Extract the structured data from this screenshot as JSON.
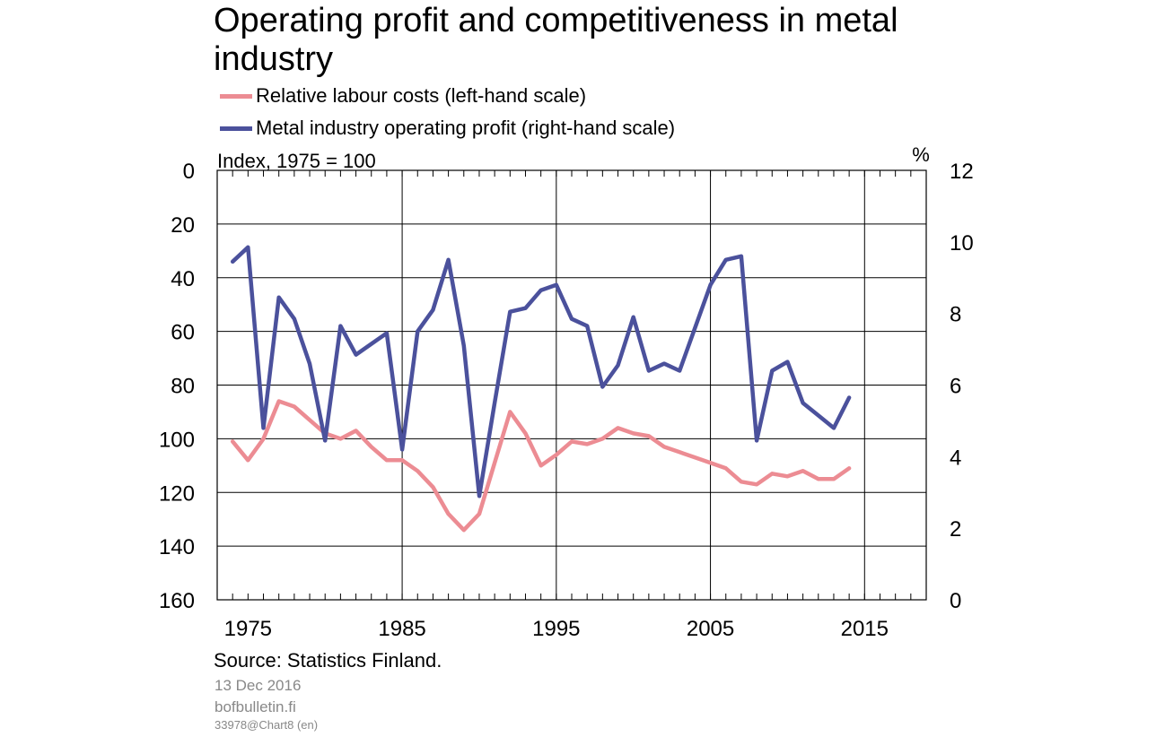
{
  "header": {
    "title": "Operating profit and competitiveness in metal industry"
  },
  "footer": {
    "source": "Source: Statistics Finland.",
    "date": "13 Dec 2016",
    "site": "bofbulletin.fi",
    "code": "33978@Chart8 (en)"
  },
  "chart_data": {
    "type": "line",
    "title": "Operating profit and competitiveness in metal industry",
    "left_axis": {
      "label": "Index, 1975 = 100",
      "range": [
        0,
        160
      ],
      "inverted": true,
      "ticks": [
        "0",
        "20",
        "40",
        "60",
        "80",
        "100",
        "120",
        "140",
        "160"
      ]
    },
    "right_axis": {
      "label": "%",
      "range": [
        0,
        12
      ],
      "ticks": [
        "0",
        "2",
        "4",
        "6",
        "8",
        "10",
        "12"
      ]
    },
    "x_axis": {
      "range": [
        1973,
        2019
      ],
      "ticks": [
        "1975",
        "1985",
        "1995",
        "2005",
        "2015"
      ]
    },
    "grid": true,
    "legend_position": "top",
    "series": [
      {
        "name": "Relative labour costs (left-hand scale)",
        "axis": "left",
        "color": "#ec8c93",
        "x": [
          1974,
          1975,
          1976,
          1977,
          1978,
          1979,
          1980,
          1981,
          1982,
          1983,
          1984,
          1985,
          1986,
          1987,
          1988,
          1989,
          1990,
          1991,
          1992,
          1993,
          1994,
          1995,
          1996,
          1997,
          1998,
          1999,
          2000,
          2001,
          2002,
          2003,
          2004,
          2005,
          2006,
          2007,
          2008,
          2009,
          2010,
          2011,
          2012,
          2013,
          2014
        ],
        "values": [
          101,
          108,
          100,
          86,
          88,
          93,
          98,
          100,
          97,
          103,
          108,
          108,
          112,
          118,
          128,
          134,
          128,
          109,
          90,
          98,
          110,
          106,
          101,
          102,
          100,
          96,
          98,
          99,
          103,
          105,
          107,
          109,
          111,
          116,
          117,
          113,
          114,
          112,
          115,
          115,
          111
        ]
      },
      {
        "name": "Metal industry operating profit (right-hand scale)",
        "axis": "right",
        "color": "#4b519c",
        "x": [
          1974,
          1975,
          1976,
          1977,
          1978,
          1979,
          1980,
          1981,
          1982,
          1983,
          1984,
          1985,
          1986,
          1987,
          1988,
          1989,
          1990,
          1991,
          1992,
          1993,
          1994,
          1995,
          1996,
          1997,
          1998,
          1999,
          2000,
          2001,
          2002,
          2003,
          2004,
          2005,
          2006,
          2007,
          2008,
          2009,
          2010,
          2011,
          2012,
          2013,
          2014
        ],
        "values": [
          9.45,
          9.85,
          4.8,
          8.45,
          7.85,
          6.6,
          4.45,
          7.65,
          6.85,
          7.15,
          7.45,
          4.2,
          7.5,
          8.1,
          9.5,
          7.1,
          2.9,
          5.5,
          8.05,
          8.15,
          8.65,
          8.8,
          7.85,
          7.65,
          5.95,
          6.55,
          7.9,
          6.4,
          6.6,
          6.4,
          7.6,
          8.8,
          9.5,
          9.6,
          4.45,
          6.4,
          6.65,
          5.5,
          5.15,
          4.8,
          5.65
        ]
      }
    ]
  }
}
